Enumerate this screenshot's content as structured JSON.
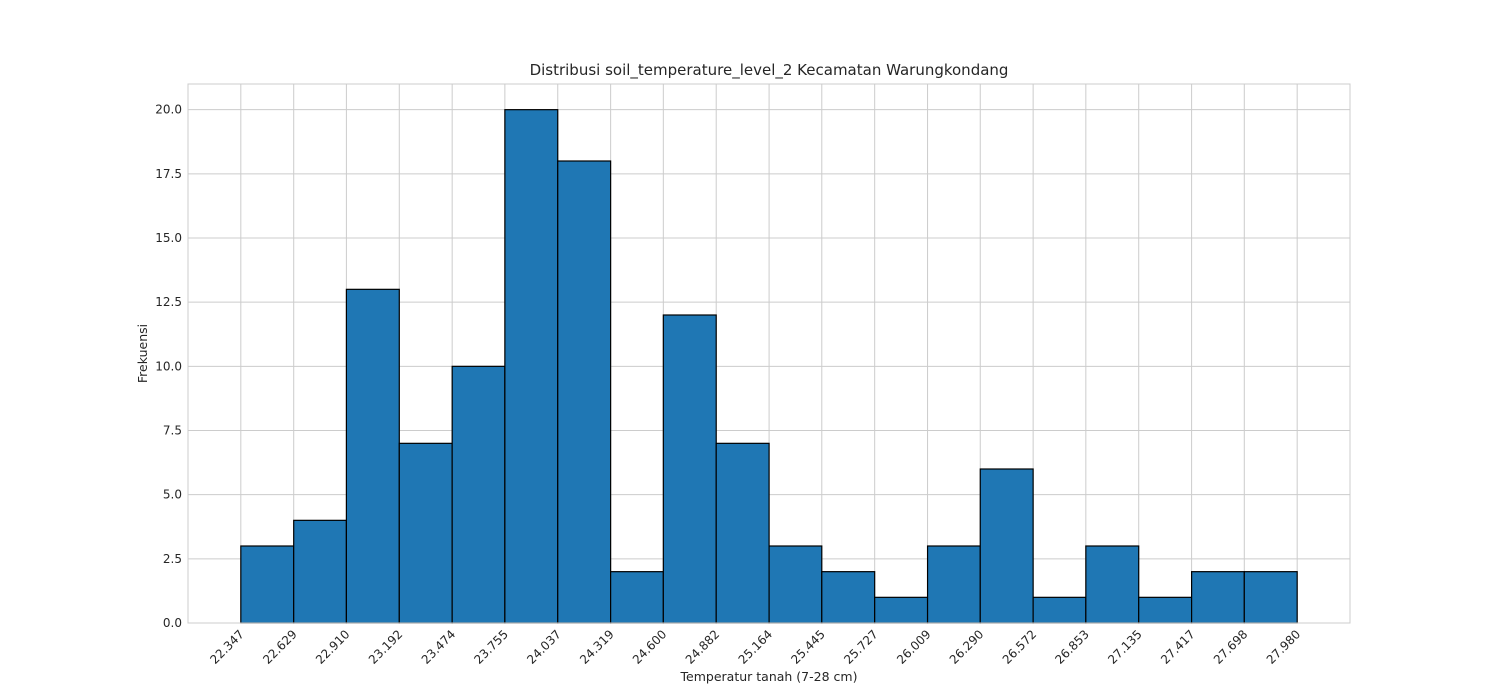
{
  "chart_data": {
    "type": "bar",
    "subtype": "histogram",
    "title": "Distribusi soil_temperature_level_2 Kecamatan Warungkondang",
    "xlabel": "Temperatur tanah (7-28 cm)",
    "ylabel": "Frekuensi",
    "bin_edges": [
      22.347,
      22.629,
      22.91,
      23.192,
      23.474,
      23.755,
      24.037,
      24.319,
      24.6,
      24.882,
      25.164,
      25.445,
      25.727,
      26.009,
      26.29,
      26.572,
      26.853,
      27.135,
      27.417,
      27.698,
      27.98
    ],
    "x_tick_labels": [
      "22.347",
      "22.629",
      "22.910",
      "23.192",
      "23.474",
      "23.755",
      "24.037",
      "24.319",
      "24.600",
      "24.882",
      "25.164",
      "25.445",
      "25.727",
      "26.009",
      "26.290",
      "26.572",
      "26.853",
      "27.135",
      "27.417",
      "27.698",
      "27.980"
    ],
    "values": [
      3,
      4,
      13,
      7,
      10,
      20,
      18,
      2,
      12,
      7,
      3,
      2,
      1,
      3,
      6,
      1,
      3,
      1,
      2,
      2
    ],
    "ylim": [
      0,
      21
    ],
    "y_ticks": [
      0.0,
      2.5,
      5.0,
      7.5,
      10.0,
      12.5,
      15.0,
      17.5,
      20.0
    ],
    "y_tick_labels": [
      "0.0",
      "2.5",
      "5.0",
      "7.5",
      "10.0",
      "12.5",
      "15.0",
      "17.5",
      "20.0"
    ],
    "grid": true,
    "bar_color": "#1f77b4",
    "bar_edge_color": "#000000",
    "grid_color": "#cccccc",
    "x_tick_rotation": 45
  }
}
